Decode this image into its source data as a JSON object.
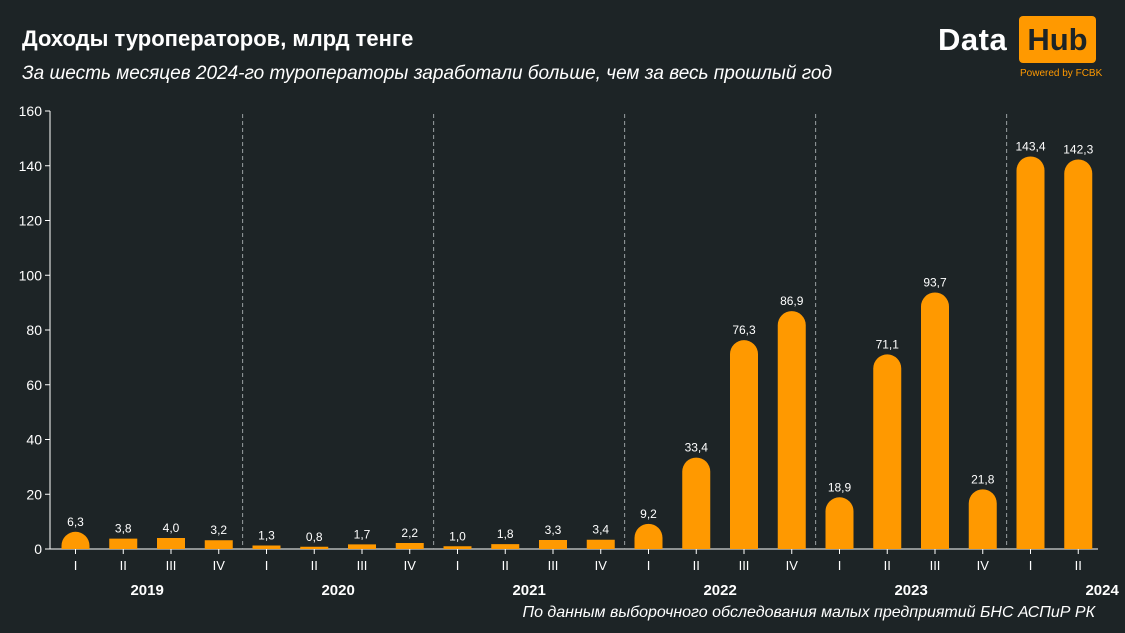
{
  "header": {
    "title": "Доходы туроператоров, млрд тенге",
    "subtitle": "За шесть месяцев 2024-го туроператоры заработали больше, чем за весь прошлый год"
  },
  "logo": {
    "word1": "Data",
    "word2": "Hub",
    "powered": "Powered by FCBK"
  },
  "footer": {
    "source": "По данным выборочного обследования малых предприятий БНС АСПиР РК"
  },
  "colors": {
    "bar": "#ff9900",
    "background": "#1d2426",
    "text": "#ffffff"
  },
  "chart_data": {
    "type": "bar",
    "title": "Доходы туроператоров, млрд тенге",
    "subtitle": "За шесть месяцев 2024-го туроператоры заработали больше, чем за весь прошлый год",
    "ylim": [
      0,
      160
    ],
    "yticks": [
      0,
      20,
      40,
      60,
      80,
      100,
      120,
      140,
      160
    ],
    "grid": false,
    "groups": [
      {
        "year": "2019",
        "quarters": [
          "I",
          "II",
          "III",
          "IV"
        ],
        "values": [
          6.3,
          3.8,
          4.0,
          3.2
        ],
        "labels": [
          "6,3",
          "3,8",
          "4,0",
          "3,2"
        ]
      },
      {
        "year": "2020",
        "quarters": [
          "I",
          "II",
          "III",
          "IV"
        ],
        "values": [
          1.3,
          0.8,
          1.7,
          2.2
        ],
        "labels": [
          "1,3",
          "0,8",
          "1,7",
          "2,2"
        ]
      },
      {
        "year": "2021",
        "quarters": [
          "I",
          "II",
          "III",
          "IV"
        ],
        "values": [
          1.0,
          1.8,
          3.3,
          3.4
        ],
        "labels": [
          "1,0",
          "1,8",
          "3,3",
          "3,4"
        ]
      },
      {
        "year": "2022",
        "quarters": [
          "I",
          "II",
          "III",
          "IV"
        ],
        "values": [
          9.2,
          33.4,
          76.3,
          86.9
        ],
        "labels": [
          "9,2",
          "33,4",
          "76,3",
          "86,9"
        ]
      },
      {
        "year": "2023",
        "quarters": [
          "I",
          "II",
          "III",
          "IV"
        ],
        "values": [
          18.9,
          71.1,
          93.7,
          21.8
        ],
        "labels": [
          "18,9",
          "71,1",
          "93,7",
          "21,8"
        ]
      },
      {
        "year": "2024",
        "quarters": [
          "I",
          "II"
        ],
        "values": [
          143.4,
          142.3
        ],
        "labels": [
          "143,4",
          "142,3"
        ]
      }
    ]
  }
}
